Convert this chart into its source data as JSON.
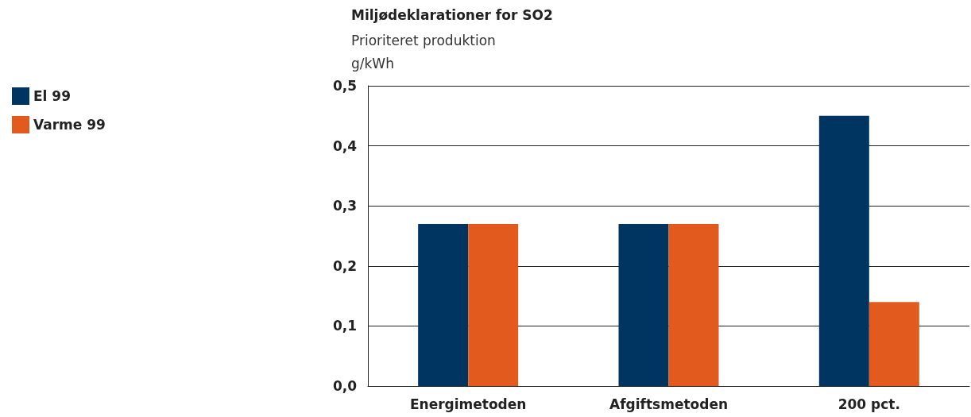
{
  "chart_data": {
    "type": "bar",
    "title": "Miljødeklarationer for SO2",
    "subtitle": "Prioriteret produktion",
    "ylabel": "g/kWh",
    "categories": [
      "Energimetoden",
      "Afgiftsmetoden",
      "200 pct."
    ],
    "series": [
      {
        "name": "El 99",
        "color": "#003562",
        "values": [
          0.27,
          0.27,
          0.45
        ]
      },
      {
        "name": "Varme 99",
        "color": "#e35a1e",
        "values": [
          0.27,
          0.27,
          0.14
        ]
      }
    ],
    "ylim": [
      0,
      0.5
    ],
    "yticks": [
      {
        "value": 0,
        "label": "0,0"
      },
      {
        "value": 0.1,
        "label": "0,1"
      },
      {
        "value": 0.2,
        "label": "0,2"
      },
      {
        "value": 0.3,
        "label": "0,3"
      },
      {
        "value": 0.4,
        "label": "0,4"
      },
      {
        "value": 0.5,
        "label": "0,5"
      }
    ],
    "grid": "y",
    "legend": "top left"
  }
}
